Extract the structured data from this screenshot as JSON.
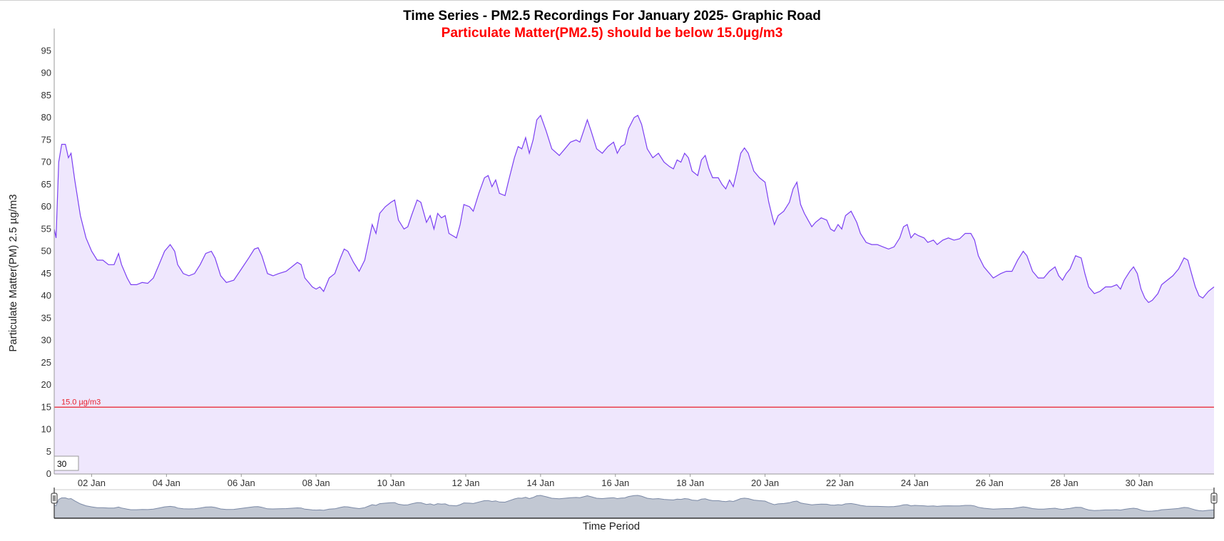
{
  "title": "Time Series - PM2.5 Recordings For January 2025- Graphic Road",
  "subtitle": "Particulate Matter(PM2.5) should be below 15.0µg/m3",
  "colors": {
    "line": "#7b3ff2",
    "area_fill": "#efe7fd",
    "threshold": "#e8202a",
    "subtitle": "#ff0000",
    "navigator_fill": "#c2c8d3",
    "navigator_line": "#7c8aa6"
  },
  "range_input_value": "30",
  "chart_data": {
    "type": "area",
    "title": "Time Series - PM2.5 Recordings For January 2025- Graphic Road",
    "subtitle": "Particulate Matter(PM2.5) should be below 15.0µg/m3",
    "xlabel": "Time Period",
    "ylabel": "Particulate Matter(PM) 2.5 µg/m3",
    "ylim": [
      0,
      100
    ],
    "yticks": [
      0,
      5,
      10,
      15,
      20,
      25,
      30,
      35,
      40,
      45,
      50,
      55,
      60,
      65,
      70,
      75,
      80,
      85,
      90,
      95
    ],
    "xlim": [
      1.0,
      32.0
    ],
    "xticks": [
      {
        "day": 2,
        "label": "02 Jan"
      },
      {
        "day": 4,
        "label": "04 Jan"
      },
      {
        "day": 6,
        "label": "06 Jan"
      },
      {
        "day": 8,
        "label": "08 Jan"
      },
      {
        "day": 10,
        "label": "10 Jan"
      },
      {
        "day": 12,
        "label": "12 Jan"
      },
      {
        "day": 14,
        "label": "14 Jan"
      },
      {
        "day": 16,
        "label": "16 Jan"
      },
      {
        "day": 18,
        "label": "18 Jan"
      },
      {
        "day": 20,
        "label": "20 Jan"
      },
      {
        "day": 22,
        "label": "22 Jan"
      },
      {
        "day": 24,
        "label": "24 Jan"
      },
      {
        "day": 26,
        "label": "26 Jan"
      },
      {
        "day": 28,
        "label": "28 Jan"
      },
      {
        "day": 30,
        "label": "30 Jan"
      }
    ],
    "threshold": {
      "value": 15.0,
      "label": "15.0 µg/m3"
    },
    "grid": false,
    "series": [
      {
        "x_unit": "day of January 2025",
        "points": [
          [
            1.0,
            55
          ],
          [
            1.05,
            53
          ],
          [
            1.12,
            70
          ],
          [
            1.2,
            74
          ],
          [
            1.3,
            74
          ],
          [
            1.38,
            71
          ],
          [
            1.45,
            72
          ],
          [
            1.55,
            66
          ],
          [
            1.7,
            58
          ],
          [
            1.85,
            53
          ],
          [
            2.0,
            50
          ],
          [
            2.15,
            48
          ],
          [
            2.3,
            48
          ],
          [
            2.45,
            47
          ],
          [
            2.6,
            47
          ],
          [
            2.72,
            49.5
          ],
          [
            2.8,
            47
          ],
          [
            2.95,
            44
          ],
          [
            3.05,
            42.5
          ],
          [
            3.2,
            42.5
          ],
          [
            3.35,
            43
          ],
          [
            3.5,
            42.8
          ],
          [
            3.65,
            44
          ],
          [
            3.8,
            47
          ],
          [
            3.95,
            50
          ],
          [
            4.1,
            51.5
          ],
          [
            4.22,
            50
          ],
          [
            4.3,
            47
          ],
          [
            4.45,
            45
          ],
          [
            4.6,
            44.5
          ],
          [
            4.75,
            45
          ],
          [
            4.9,
            47
          ],
          [
            5.05,
            49.5
          ],
          [
            5.2,
            50
          ],
          [
            5.3,
            48.5
          ],
          [
            5.45,
            44.5
          ],
          [
            5.6,
            43
          ],
          [
            5.8,
            43.5
          ],
          [
            6.0,
            46
          ],
          [
            6.2,
            48.5
          ],
          [
            6.35,
            50.5
          ],
          [
            6.45,
            50.8
          ],
          [
            6.55,
            49
          ],
          [
            6.7,
            45
          ],
          [
            6.85,
            44.5
          ],
          [
            7.0,
            45
          ],
          [
            7.2,
            45.5
          ],
          [
            7.35,
            46.5
          ],
          [
            7.5,
            47.5
          ],
          [
            7.6,
            47
          ],
          [
            7.7,
            44
          ],
          [
            7.8,
            43
          ],
          [
            7.9,
            42
          ],
          [
            8.0,
            41.5
          ],
          [
            8.1,
            42
          ],
          [
            8.2,
            41
          ],
          [
            8.35,
            44
          ],
          [
            8.5,
            45
          ],
          [
            8.65,
            48.5
          ],
          [
            8.75,
            50.5
          ],
          [
            8.85,
            50
          ],
          [
            9.0,
            47.5
          ],
          [
            9.15,
            45.5
          ],
          [
            9.3,
            48
          ],
          [
            9.4,
            52
          ],
          [
            9.5,
            56
          ],
          [
            9.6,
            54
          ],
          [
            9.7,
            58.5
          ],
          [
            9.85,
            60
          ],
          [
            10.0,
            61
          ],
          [
            10.1,
            61.5
          ],
          [
            10.2,
            57
          ],
          [
            10.35,
            55
          ],
          [
            10.45,
            55.5
          ],
          [
            10.55,
            58
          ],
          [
            10.7,
            61.5
          ],
          [
            10.8,
            61
          ],
          [
            10.95,
            56.5
          ],
          [
            11.05,
            58
          ],
          [
            11.15,
            55
          ],
          [
            11.25,
            58.5
          ],
          [
            11.35,
            57.5
          ],
          [
            11.45,
            58
          ],
          [
            11.55,
            54
          ],
          [
            11.65,
            53.5
          ],
          [
            11.75,
            53
          ],
          [
            11.85,
            56
          ],
          [
            11.95,
            60.5
          ],
          [
            12.1,
            60
          ],
          [
            12.2,
            59
          ],
          [
            12.35,
            63
          ],
          [
            12.5,
            66.5
          ],
          [
            12.6,
            67
          ],
          [
            12.7,
            64.5
          ],
          [
            12.8,
            66
          ],
          [
            12.9,
            63
          ],
          [
            13.05,
            62.5
          ],
          [
            13.15,
            66
          ],
          [
            13.3,
            71
          ],
          [
            13.4,
            73.5
          ],
          [
            13.5,
            73
          ],
          [
            13.6,
            75.5
          ],
          [
            13.7,
            72
          ],
          [
            13.8,
            75
          ],
          [
            13.9,
            79.5
          ],
          [
            14.0,
            80.5
          ],
          [
            14.15,
            77
          ],
          [
            14.3,
            73
          ],
          [
            14.5,
            71.5
          ],
          [
            14.65,
            73
          ],
          [
            14.8,
            74.5
          ],
          [
            14.95,
            75
          ],
          [
            15.05,
            74.5
          ],
          [
            15.15,
            77
          ],
          [
            15.25,
            79.5
          ],
          [
            15.35,
            77
          ],
          [
            15.5,
            73
          ],
          [
            15.65,
            72
          ],
          [
            15.8,
            73.5
          ],
          [
            15.95,
            74.5
          ],
          [
            16.05,
            72
          ],
          [
            16.15,
            73.5
          ],
          [
            16.25,
            74
          ],
          [
            16.35,
            77.5
          ],
          [
            16.5,
            80
          ],
          [
            16.6,
            80.5
          ],
          [
            16.7,
            78.5
          ],
          [
            16.85,
            73
          ],
          [
            17.0,
            71
          ],
          [
            17.15,
            72
          ],
          [
            17.3,
            70
          ],
          [
            17.45,
            69
          ],
          [
            17.55,
            68.5
          ],
          [
            17.65,
            70.5
          ],
          [
            17.75,
            70
          ],
          [
            17.85,
            72
          ],
          [
            17.95,
            71
          ],
          [
            18.05,
            68
          ],
          [
            18.2,
            67
          ],
          [
            18.3,
            70.5
          ],
          [
            18.4,
            71.5
          ],
          [
            18.5,
            68.5
          ],
          [
            18.6,
            66.5
          ],
          [
            18.75,
            66.5
          ],
          [
            18.85,
            65
          ],
          [
            18.95,
            64
          ],
          [
            19.05,
            66
          ],
          [
            19.15,
            64.5
          ],
          [
            19.25,
            68
          ],
          [
            19.35,
            72
          ],
          [
            19.45,
            73.2
          ],
          [
            19.55,
            72
          ],
          [
            19.7,
            68
          ],
          [
            19.85,
            66.5
          ],
          [
            20.0,
            65.5
          ],
          [
            20.1,
            61
          ],
          [
            20.2,
            57.5
          ],
          [
            20.25,
            56
          ],
          [
            20.35,
            58
          ],
          [
            20.5,
            59
          ],
          [
            20.65,
            61
          ],
          [
            20.75,
            64
          ],
          [
            20.85,
            65.5
          ],
          [
            20.95,
            60.5
          ],
          [
            21.05,
            58.5
          ],
          [
            21.15,
            57
          ],
          [
            21.25,
            55.5
          ],
          [
            21.35,
            56.5
          ],
          [
            21.5,
            57.5
          ],
          [
            21.65,
            57
          ],
          [
            21.75,
            55
          ],
          [
            21.85,
            54.5
          ],
          [
            21.95,
            56
          ],
          [
            22.05,
            55
          ],
          [
            22.15,
            58
          ],
          [
            22.3,
            59
          ],
          [
            22.45,
            56.5
          ],
          [
            22.55,
            54
          ],
          [
            22.7,
            52
          ],
          [
            22.85,
            51.5
          ],
          [
            23.0,
            51.5
          ],
          [
            23.15,
            51
          ],
          [
            23.3,
            50.5
          ],
          [
            23.45,
            51
          ],
          [
            23.6,
            53
          ],
          [
            23.7,
            55.5
          ],
          [
            23.8,
            56
          ],
          [
            23.9,
            53
          ],
          [
            24.0,
            54
          ],
          [
            24.1,
            53.5
          ],
          [
            24.25,
            53
          ],
          [
            24.35,
            52
          ],
          [
            24.5,
            52.5
          ],
          [
            24.6,
            51.5
          ],
          [
            24.75,
            52.5
          ],
          [
            24.9,
            53
          ],
          [
            25.05,
            52.5
          ],
          [
            25.2,
            52.8
          ],
          [
            25.35,
            54
          ],
          [
            25.5,
            54
          ],
          [
            25.6,
            52.5
          ],
          [
            25.7,
            49
          ],
          [
            25.85,
            46.5
          ],
          [
            26.0,
            45
          ],
          [
            26.1,
            44
          ],
          [
            26.2,
            44.5
          ],
          [
            26.3,
            45
          ],
          [
            26.45,
            45.5
          ],
          [
            26.6,
            45.5
          ],
          [
            26.75,
            48
          ],
          [
            26.9,
            50
          ],
          [
            27.0,
            49
          ],
          [
            27.15,
            45.5
          ],
          [
            27.3,
            44
          ],
          [
            27.45,
            44
          ],
          [
            27.6,
            45.5
          ],
          [
            27.75,
            46.5
          ],
          [
            27.85,
            44.5
          ],
          [
            27.95,
            43.5
          ],
          [
            28.05,
            45
          ],
          [
            28.15,
            46
          ],
          [
            28.3,
            49
          ],
          [
            28.45,
            48.5
          ],
          [
            28.55,
            45
          ],
          [
            28.65,
            42
          ],
          [
            28.8,
            40.5
          ],
          [
            28.95,
            41
          ],
          [
            29.1,
            42
          ],
          [
            29.25,
            42
          ],
          [
            29.4,
            42.5
          ],
          [
            29.5,
            41.5
          ],
          [
            29.6,
            43.5
          ],
          [
            29.75,
            45.5
          ],
          [
            29.85,
            46.5
          ],
          [
            29.95,
            45
          ],
          [
            30.05,
            41.5
          ],
          [
            30.15,
            39.5
          ],
          [
            30.25,
            38.5
          ],
          [
            30.35,
            39
          ],
          [
            30.5,
            40.5
          ],
          [
            30.6,
            42.5
          ],
          [
            30.75,
            43.5
          ],
          [
            30.9,
            44.5
          ],
          [
            31.05,
            46
          ],
          [
            31.2,
            48.5
          ],
          [
            31.3,
            48
          ],
          [
            31.4,
            45
          ],
          [
            31.5,
            42
          ],
          [
            31.6,
            40
          ],
          [
            31.7,
            39.5
          ],
          [
            31.85,
            41
          ],
          [
            32.0,
            42
          ]
        ]
      }
    ],
    "note_points_x_span": [
      1.0,
      32.0
    ]
  },
  "navigator": {
    "xaxis_title": "Time Period"
  }
}
